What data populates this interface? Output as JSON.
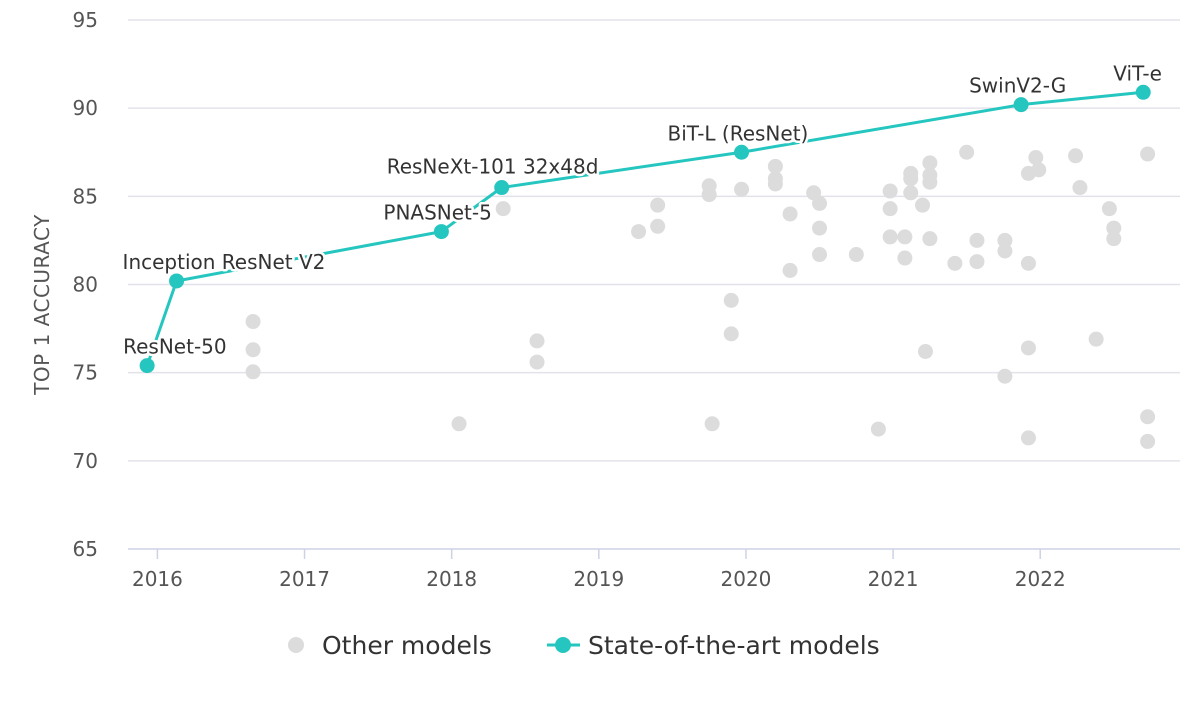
{
  "chart_data": {
    "type": "scatter",
    "title": "",
    "xlabel": "",
    "ylabel": "TOP 1 ACCURACY",
    "xlim": [
      2015.8,
      2022.95
    ],
    "ylim": [
      65,
      95
    ],
    "x_ticks": [
      2016,
      2017,
      2018,
      2019,
      2020,
      2021,
      2022
    ],
    "y_ticks": [
      65,
      70,
      75,
      80,
      85,
      90,
      95
    ],
    "grid": "horizontal",
    "legend_position": "bottom-center",
    "colors": {
      "other": "#dcdcdc",
      "sota": "#26c6c0",
      "axis_text": "#555555",
      "grid": "#e2e2ea"
    },
    "series": [
      {
        "name": "Other models",
        "kind": "scatter",
        "points": [
          [
            2016.65,
            77.9
          ],
          [
            2016.65,
            76.3
          ],
          [
            2016.65,
            75.05
          ],
          [
            2018.05,
            72.1
          ],
          [
            2018.35,
            84.3
          ],
          [
            2018.58,
            76.8
          ],
          [
            2018.58,
            75.6
          ],
          [
            2019.27,
            83.0
          ],
          [
            2019.4,
            84.5
          ],
          [
            2019.4,
            83.3
          ],
          [
            2019.75,
            85.6
          ],
          [
            2019.75,
            85.1
          ],
          [
            2019.77,
            72.1
          ],
          [
            2019.9,
            79.1
          ],
          [
            2019.9,
            77.2
          ],
          [
            2019.97,
            85.4
          ],
          [
            2020.2,
            86.7
          ],
          [
            2020.2,
            86.0
          ],
          [
            2020.2,
            85.7
          ],
          [
            2020.3,
            84.0
          ],
          [
            2020.3,
            80.8
          ],
          [
            2020.46,
            85.2
          ],
          [
            2020.5,
            84.6
          ],
          [
            2020.5,
            83.2
          ],
          [
            2020.5,
            81.7
          ],
          [
            2020.75,
            81.7
          ],
          [
            2020.9,
            71.8
          ],
          [
            2020.98,
            85.3
          ],
          [
            2020.98,
            84.3
          ],
          [
            2020.98,
            82.7
          ],
          [
            2021.08,
            82.7
          ],
          [
            2021.08,
            81.5
          ],
          [
            2021.12,
            86.3
          ],
          [
            2021.12,
            86.0
          ],
          [
            2021.12,
            85.2
          ],
          [
            2021.2,
            84.5
          ],
          [
            2021.22,
            76.2
          ],
          [
            2021.25,
            86.9
          ],
          [
            2021.25,
            86.2
          ],
          [
            2021.25,
            85.8
          ],
          [
            2021.25,
            82.6
          ],
          [
            2021.42,
            81.2
          ],
          [
            2021.5,
            87.5
          ],
          [
            2021.57,
            82.5
          ],
          [
            2021.57,
            81.3
          ],
          [
            2021.76,
            82.5
          ],
          [
            2021.76,
            81.9
          ],
          [
            2021.76,
            74.8
          ],
          [
            2021.92,
            86.3
          ],
          [
            2021.92,
            81.2
          ],
          [
            2021.92,
            76.4
          ],
          [
            2021.92,
            71.3
          ],
          [
            2021.97,
            87.2
          ],
          [
            2021.99,
            86.5
          ],
          [
            2022.24,
            87.3
          ],
          [
            2022.27,
            85.5
          ],
          [
            2022.38,
            76.9
          ],
          [
            2022.47,
            84.3
          ],
          [
            2022.5,
            83.2
          ],
          [
            2022.5,
            82.6
          ],
          [
            2022.73,
            87.4
          ],
          [
            2022.73,
            72.5
          ],
          [
            2022.73,
            71.1
          ]
        ]
      },
      {
        "name": "State-of-the-art models",
        "kind": "line",
        "points": [
          {
            "x": 2015.93,
            "y": 75.4,
            "label": "ResNet-50"
          },
          {
            "x": 2016.13,
            "y": 80.2,
            "label": "Inception ResNet V2"
          },
          {
            "x": 2017.93,
            "y": 83.0,
            "label": "PNASNet-5"
          },
          {
            "x": 2018.34,
            "y": 85.5,
            "label": "ResNeXt-101 32x48d"
          },
          {
            "x": 2019.97,
            "y": 87.5,
            "label": "BiT-L (ResNet)"
          },
          {
            "x": 2021.87,
            "y": 90.2,
            "label": "SwinV2-G"
          },
          {
            "x": 2022.7,
            "y": 90.9,
            "label": "ViT-e"
          }
        ]
      }
    ]
  }
}
